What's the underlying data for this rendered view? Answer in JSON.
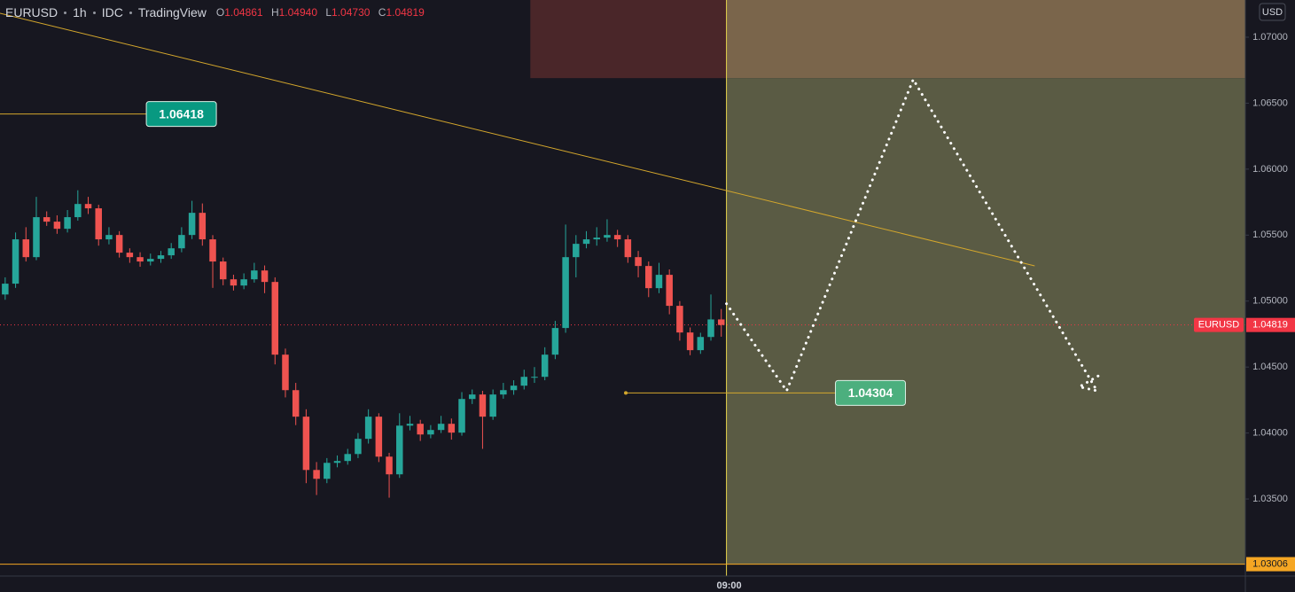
{
  "chart_data": {
    "type": "candlestick",
    "symbol": "EURUSD",
    "interval": "1h",
    "source": "IDC",
    "platform": "TradingView",
    "ohlc_legend": [
      {
        "key": "O",
        "value": "1.04861"
      },
      {
        "key": "H",
        "value": "1.04940"
      },
      {
        "key": "L",
        "value": "1.04730"
      },
      {
        "key": "C",
        "value": "1.04819"
      }
    ],
    "currency": "USD",
    "up_color": "#26a69a",
    "down_color": "#ef5350",
    "xlim": [
      0,
      120
    ],
    "xticks": [
      {
        "value": 70,
        "label": "09:00"
      }
    ],
    "ylim": [
      1.02916,
      1.07282
    ],
    "yticks": [
      {
        "value": 1.035,
        "label": "1.03500"
      },
      {
        "value": 1.04,
        "label": "1.04000"
      },
      {
        "value": 1.045,
        "label": "1.04500"
      },
      {
        "value": 1.05,
        "label": "1.05000"
      },
      {
        "value": 1.055,
        "label": "1.05500"
      },
      {
        "value": 1.06,
        "label": "1.06000"
      },
      {
        "value": 1.065,
        "label": "1.06500"
      },
      {
        "value": 1.07,
        "label": "1.07000"
      }
    ],
    "candles": [
      [
        1.0505,
        1.0518,
        1.0501,
        1.05132
      ],
      [
        1.05132,
        1.0552,
        1.051,
        1.05468
      ],
      [
        1.05468,
        1.0556,
        1.053,
        1.05333
      ],
      [
        1.05333,
        1.0579,
        1.0531,
        1.05636
      ],
      [
        1.05636,
        1.0568,
        1.0557,
        1.05602
      ],
      [
        1.05602,
        1.0565,
        1.0551,
        1.05548
      ],
      [
        1.05548,
        1.0569,
        1.0552,
        1.05636
      ],
      [
        1.05636,
        1.0584,
        1.0561,
        1.05736
      ],
      [
        1.05736,
        1.0579,
        1.0566,
        1.05703
      ],
      [
        1.05703,
        1.0573,
        1.0542,
        1.05468
      ],
      [
        1.05468,
        1.0556,
        1.0543,
        1.05501
      ],
      [
        1.05501,
        1.0553,
        1.0533,
        1.05367
      ],
      [
        1.05367,
        1.054,
        1.0529,
        1.05333
      ],
      [
        1.05333,
        1.0537,
        1.0526,
        1.053
      ],
      [
        1.053,
        1.0536,
        1.0527,
        1.0532
      ],
      [
        1.0532,
        1.0538,
        1.0529,
        1.05347
      ],
      [
        1.05347,
        1.0544,
        1.0532,
        1.054
      ],
      [
        1.054,
        1.0556,
        1.0537,
        1.05501
      ],
      [
        1.05501,
        1.0576,
        1.0547,
        1.05669
      ],
      [
        1.05669,
        1.0574,
        1.0542,
        1.05468
      ],
      [
        1.05468,
        1.055,
        1.051,
        1.053
      ],
      [
        1.053,
        1.0533,
        1.0512,
        1.05165
      ],
      [
        1.05165,
        1.052,
        1.0508,
        1.05118
      ],
      [
        1.05118,
        1.0521,
        1.0509,
        1.05165
      ],
      [
        1.05165,
        1.0529,
        1.0514,
        1.05232
      ],
      [
        1.05232,
        1.0527,
        1.0506,
        1.05145
      ],
      [
        1.05145,
        1.0518,
        1.0452,
        1.04594
      ],
      [
        1.04594,
        1.0464,
        1.0427,
        1.04325
      ],
      [
        1.04325,
        1.0438,
        1.0406,
        1.04124
      ],
      [
        1.04124,
        1.0418,
        1.0362,
        1.0372
      ],
      [
        1.0372,
        1.0378,
        1.0353,
        1.03653
      ],
      [
        1.03653,
        1.0381,
        1.0362,
        1.03774
      ],
      [
        1.03774,
        1.0383,
        1.0374,
        1.03788
      ],
      [
        1.03788,
        1.0388,
        1.0376,
        1.03841
      ],
      [
        1.03841,
        1.04,
        1.0381,
        1.03956
      ],
      [
        1.03956,
        1.0418,
        1.0392,
        1.04124
      ],
      [
        1.04124,
        1.0415,
        1.0378,
        1.03821
      ],
      [
        1.03821,
        1.0385,
        1.0351,
        1.03687
      ],
      [
        1.03687,
        1.0415,
        1.0366,
        1.04056
      ],
      [
        1.04056,
        1.0413,
        1.0402,
        1.0407
      ],
      [
        1.0407,
        1.041,
        1.0394,
        1.03989
      ],
      [
        1.03989,
        1.0406,
        1.0396,
        1.04023
      ],
      [
        1.04023,
        1.0413,
        1.04,
        1.0407
      ],
      [
        1.0407,
        1.0411,
        1.0395,
        1.04003
      ],
      [
        1.04003,
        1.0431,
        1.0398,
        1.04258
      ],
      [
        1.04258,
        1.0433,
        1.0422,
        1.04292
      ],
      [
        1.04292,
        1.0432,
        1.0388,
        1.04124
      ],
      [
        1.04124,
        1.0433,
        1.041,
        1.04292
      ],
      [
        1.04292,
        1.0438,
        1.0426,
        1.04325
      ],
      [
        1.04325,
        1.044,
        1.0429,
        1.04359
      ],
      [
        1.04359,
        1.0448,
        1.0433,
        1.04426
      ],
      [
        1.04426,
        1.045,
        1.0438,
        1.04426
      ],
      [
        1.04426,
        1.0465,
        1.044,
        1.04594
      ],
      [
        1.04594,
        1.0485,
        1.0456,
        1.04796
      ],
      [
        1.04796,
        1.0558,
        1.0476,
        1.05333
      ],
      [
        1.05333,
        1.055,
        1.0518,
        1.05434
      ],
      [
        1.05434,
        1.0553,
        1.054,
        1.05468
      ],
      [
        1.05468,
        1.0556,
        1.0542,
        1.05481
      ],
      [
        1.05481,
        1.0562,
        1.0545,
        1.05501
      ],
      [
        1.05501,
        1.0554,
        1.0541,
        1.05468
      ],
      [
        1.05468,
        1.055,
        1.0529,
        1.05333
      ],
      [
        1.05333,
        1.0538,
        1.0518,
        1.05266
      ],
      [
        1.05266,
        1.053,
        1.0503,
        1.05098
      ],
      [
        1.05098,
        1.0529,
        1.0506,
        1.05199
      ],
      [
        1.05199,
        1.0524,
        1.049,
        1.04964
      ],
      [
        1.04964,
        1.05,
        1.047,
        1.04762
      ],
      [
        1.04762,
        1.048,
        1.0459,
        1.04628
      ],
      [
        1.04628,
        1.0476,
        1.046,
        1.04728
      ],
      [
        1.04728,
        1.0505,
        1.047,
        1.04861
      ],
      [
        1.04861,
        1.0494,
        1.0473,
        1.04819
      ]
    ],
    "zones": [
      {
        "x": [
          51.1,
          70
        ],
        "y": [
          1.0669,
          1.073
        ],
        "color": "#4a2629"
      },
      {
        "x": [
          70,
          120
        ],
        "y": [
          1.0669,
          1.073
        ],
        "color": "#7a654b"
      },
      {
        "x": [
          70,
          120
        ],
        "y": [
          1.03006,
          1.0669
        ],
        "color": "#5a5b44"
      }
    ],
    "trend_line": {
      "x": [
        0,
        99.7
      ],
      "y": [
        1.07181,
        1.05267
      ],
      "color": "#d4a72c"
    },
    "annotations": [
      {
        "value": 1.06418,
        "x": [
          0,
          14.1
        ],
        "color": "#089981"
      },
      {
        "value": 1.04304,
        "x": [
          60.3,
          80.5
        ],
        "color": "#4caf7e"
      }
    ],
    "projection": {
      "x": [
        70,
        75.8,
        88,
        105.7,
        104,
        106.2
      ],
      "y": [
        1.0498,
        1.0432,
        1.0668,
        1.0432,
        1.0435,
        1.0445
      ],
      "color": "#ffffff"
    },
    "last_price": {
      "label": "EURUSD",
      "value": 1.04819,
      "color": "#f23645"
    },
    "level_line": {
      "value": 1.03006,
      "color": "#f5a623"
    }
  }
}
